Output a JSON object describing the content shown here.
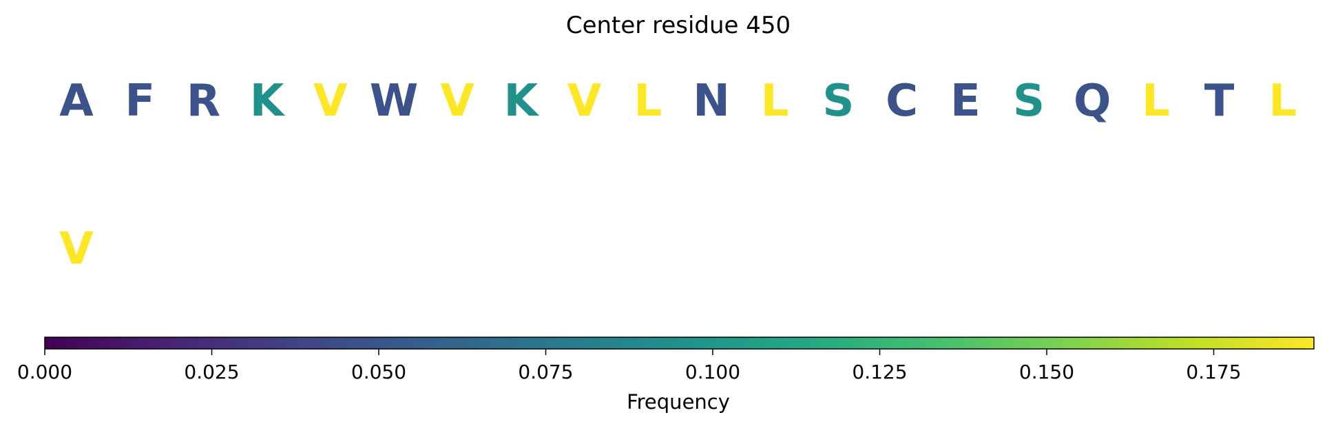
{
  "chart_data": {
    "type": "table",
    "title": "Center residue 450",
    "residues": [
      {
        "letter": "A",
        "frequency": 0.048
      },
      {
        "letter": "F",
        "frequency": 0.048
      },
      {
        "letter": "R",
        "frequency": 0.048
      },
      {
        "letter": "K",
        "frequency": 0.095
      },
      {
        "letter": "V",
        "frequency": 0.19
      },
      {
        "letter": "W",
        "frequency": 0.048
      },
      {
        "letter": "V",
        "frequency": 0.19
      },
      {
        "letter": "K",
        "frequency": 0.095
      },
      {
        "letter": "V",
        "frequency": 0.19
      },
      {
        "letter": "L",
        "frequency": 0.19
      },
      {
        "letter": "N",
        "frequency": 0.048
      },
      {
        "letter": "L",
        "frequency": 0.19
      },
      {
        "letter": "S",
        "frequency": 0.095
      },
      {
        "letter": "C",
        "frequency": 0.048
      },
      {
        "letter": "E",
        "frequency": 0.048
      },
      {
        "letter": "S",
        "frequency": 0.095
      },
      {
        "letter": "Q",
        "frequency": 0.048
      },
      {
        "letter": "L",
        "frequency": 0.19
      },
      {
        "letter": "T",
        "frequency": 0.048
      },
      {
        "letter": "L",
        "frequency": 0.19
      },
      {
        "letter": "V",
        "frequency": 0.19
      }
    ],
    "colorbar": {
      "label": "Frequency",
      "colormap": "viridis",
      "range": [
        0,
        0.19
      ],
      "ticks": [
        0,
        0.025,
        0.05,
        0.075,
        0.1,
        0.125,
        0.15,
        0.175
      ],
      "tick_labels": [
        "0.000",
        "0.025",
        "0.050",
        "0.075",
        "0.100",
        "0.125",
        "0.150",
        "0.175"
      ],
      "orientation": "horizontal"
    },
    "grid": false
  }
}
